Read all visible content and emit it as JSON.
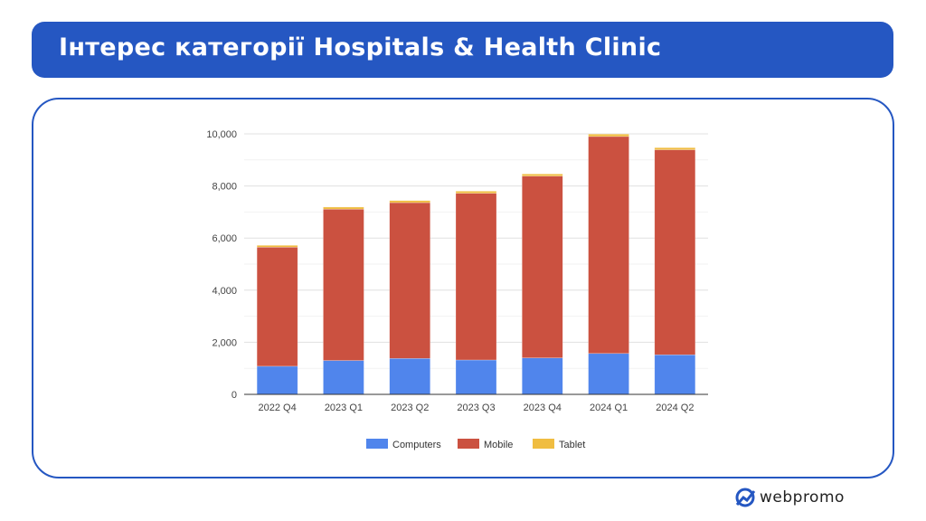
{
  "header": {
    "title": "Інтерес категорії Hospitals & Health Clinic"
  },
  "brand": {
    "name": "webpromo"
  },
  "colors": {
    "accent": "#2557c2",
    "computers": "#5085ec",
    "mobile": "#cb5140",
    "tablet": "#f0bd41"
  },
  "chart_data": {
    "type": "bar",
    "stacked": true,
    "categories": [
      "2022 Q4",
      "2023 Q1",
      "2023 Q2",
      "2023 Q3",
      "2023 Q4",
      "2024 Q1",
      "2024 Q2"
    ],
    "series": [
      {
        "name": "Computers",
        "values": [
          1080,
          1300,
          1380,
          1320,
          1400,
          1570,
          1520
        ]
      },
      {
        "name": "Mobile",
        "values": [
          4570,
          5810,
          5980,
          6400,
          6980,
          8330,
          7870
        ]
      },
      {
        "name": "Tablet",
        "values": [
          70,
          80,
          80,
          80,
          80,
          90,
          80
        ]
      }
    ],
    "yticks": [
      "0",
      "2,000",
      "4,000",
      "6,000",
      "8,000",
      "10,000"
    ],
    "ylim": [
      0,
      10000
    ],
    "grid": true,
    "legend": "bottom"
  }
}
